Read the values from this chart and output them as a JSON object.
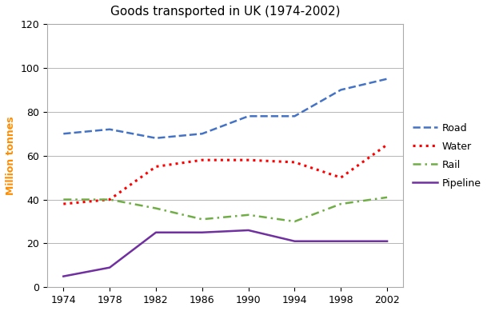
{
  "title": "Goods transported in UK (1974-2002)",
  "ylabel": "Million tonnes",
  "years": [
    1974,
    1978,
    1982,
    1986,
    1990,
    1994,
    1998,
    2002
  ],
  "road": [
    70,
    72,
    68,
    70,
    78,
    78,
    90,
    95
  ],
  "water": [
    38,
    40,
    55,
    58,
    58,
    57,
    50,
    65
  ],
  "rail": [
    40,
    40,
    36,
    31,
    33,
    30,
    38,
    41
  ],
  "pipeline": [
    5,
    9,
    25,
    25,
    26,
    21,
    21,
    21
  ],
  "road_color": "#4472C4",
  "water_color": "#FF0000",
  "rail_color": "#70AD47",
  "pipeline_color": "#7030A0",
  "ylabel_color": "#FF8C00",
  "ylim": [
    0,
    120
  ],
  "yticks": [
    0,
    20,
    40,
    60,
    80,
    100,
    120
  ],
  "title_fontsize": 11,
  "axis_label_fontsize": 9,
  "tick_fontsize": 9,
  "legend_labels": [
    "Road",
    "Water",
    "Rail",
    "Pipeline"
  ],
  "legend_fontsize": 9
}
